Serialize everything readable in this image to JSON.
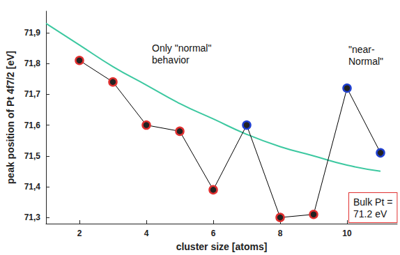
{
  "chart_data": {
    "type": "line",
    "x_label": "cluster size [atoms]",
    "y_label": "peak position of Pt 4f7/2 [eV]",
    "xlim": [
      1,
      11.5
    ],
    "xticks": [
      2,
      4,
      6,
      8,
      10
    ],
    "ylim": [
      71.28,
      71.97
    ],
    "yticks": [
      {
        "value": 71.3,
        "label": "71,3"
      },
      {
        "value": 71.4,
        "label": "71,4"
      },
      {
        "value": 71.5,
        "label": "71,5"
      },
      {
        "value": 71.6,
        "label": "71,6"
      },
      {
        "value": 71.7,
        "label": "71,7"
      },
      {
        "value": 71.8,
        "label": "71,8"
      },
      {
        "value": 71.9,
        "label": "71,9"
      }
    ],
    "grid": false,
    "series": [
      {
        "x": [
          1,
          2,
          3,
          4,
          5,
          6,
          7,
          8,
          9,
          10,
          11
        ],
        "values": [
          71.93,
          71.86,
          71.79,
          71.73,
          71.67,
          71.62,
          71.57,
          71.53,
          71.5,
          71.47,
          71.45
        ],
        "color": "#3cc8a0",
        "marker": "none",
        "line_style": "solid"
      },
      {
        "x": [
          2,
          3,
          4,
          5,
          6,
          7,
          8,
          9,
          10,
          11
        ],
        "values": [
          71.81,
          71.74,
          71.6,
          71.58,
          71.39,
          71.6,
          71.3,
          71.31,
          71.72,
          71.51
        ],
        "color": "#000000",
        "colors": [
          "#e03030",
          "#e03030",
          "#e03030",
          "#e03030",
          "#e03030",
          "#2040d0",
          "#e03030",
          "#e03030",
          "#2040d0",
          "#2040d0"
        ],
        "marker": "circle",
        "line_style": "solid"
      }
    ],
    "annotations": [
      "Only \"normal\"\nbehavior",
      "\"near-\nNormal\"",
      "Bulk Pt =\n71.2 eV"
    ]
  }
}
